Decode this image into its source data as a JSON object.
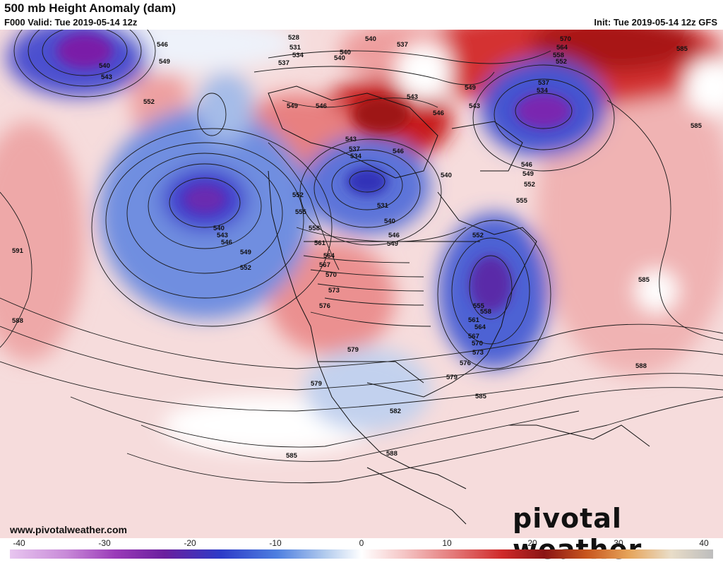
{
  "header": {
    "title": "500 mb Height Anomaly (dam)",
    "valid": "F000 Valid: Tue 2019-05-14 12z",
    "init": "Init: Tue 2019-05-14 12z GFS"
  },
  "footer": {
    "website": "www.pivotalweather.com",
    "brand": "pivotal weather"
  },
  "colorbar": {
    "ticks": [
      "-40",
      "-30",
      "-20",
      "-10",
      "0",
      "10",
      "20",
      "30",
      "40"
    ],
    "colors": {
      "neg_deep": "#d9a6e8",
      "neg_purple": "#7a1fa8",
      "neg_blue": "#2a3fcf",
      "neg_light": "#b8ccec",
      "neutral": "#ffffff",
      "pos_light": "#f3c8c8",
      "pos_red": "#d42a2a",
      "pos_dark": "#8a1414",
      "pos_orange": "#e6892e",
      "pos_grey": "#cfcfcf"
    }
  },
  "contour_labels": [
    "528",
    "531",
    "534",
    "537",
    "540",
    "543",
    "546",
    "549",
    "552",
    "555",
    "558",
    "561",
    "564",
    "567",
    "570",
    "573",
    "576",
    "579",
    "582",
    "585",
    "588",
    "591"
  ],
  "contour_label_instances": [
    {
      "text": "540"
    },
    {
      "text": "543"
    },
    {
      "text": "546"
    },
    {
      "text": "549"
    },
    {
      "text": "552"
    },
    {
      "text": "528"
    },
    {
      "text": "531"
    },
    {
      "text": "534"
    },
    {
      "text": "537"
    },
    {
      "text": "540"
    },
    {
      "text": "537"
    },
    {
      "text": "540"
    },
    {
      "text": "549"
    },
    {
      "text": "546"
    },
    {
      "text": "543"
    },
    {
      "text": "546"
    },
    {
      "text": "543"
    },
    {
      "text": "537"
    },
    {
      "text": "534"
    },
    {
      "text": "540"
    },
    {
      "text": "531"
    },
    {
      "text": "540"
    },
    {
      "text": "546"
    },
    {
      "text": "549"
    },
    {
      "text": "552"
    },
    {
      "text": "555"
    },
    {
      "text": "558"
    },
    {
      "text": "561"
    },
    {
      "text": "564"
    },
    {
      "text": "567"
    },
    {
      "text": "570"
    },
    {
      "text": "573"
    },
    {
      "text": "576"
    },
    {
      "text": "579"
    },
    {
      "text": "579"
    },
    {
      "text": "582"
    },
    {
      "text": "585"
    },
    {
      "text": "588"
    },
    {
      "text": "591"
    },
    {
      "text": "588"
    },
    {
      "text": "585"
    },
    {
      "text": "570"
    },
    {
      "text": "564"
    },
    {
      "text": "558"
    },
    {
      "text": "552"
    },
    {
      "text": "537"
    },
    {
      "text": "534"
    },
    {
      "text": "585"
    },
    {
      "text": "585"
    },
    {
      "text": "588"
    },
    {
      "text": "585"
    },
    {
      "text": "579"
    },
    {
      "text": "576"
    },
    {
      "text": "573"
    },
    {
      "text": "570"
    },
    {
      "text": "567"
    },
    {
      "text": "564"
    },
    {
      "text": "561"
    },
    {
      "text": "558"
    },
    {
      "text": "555"
    },
    {
      "text": "552"
    },
    {
      "text": "546"
    },
    {
      "text": "549"
    },
    {
      "text": "552"
    },
    {
      "text": "555"
    },
    {
      "text": "543"
    },
    {
      "text": "540"
    },
    {
      "text": "546"
    },
    {
      "text": "549"
    },
    {
      "text": "540"
    },
    {
      "text": "543"
    },
    {
      "text": "546"
    },
    {
      "text": "549"
    },
    {
      "text": "552"
    }
  ]
}
